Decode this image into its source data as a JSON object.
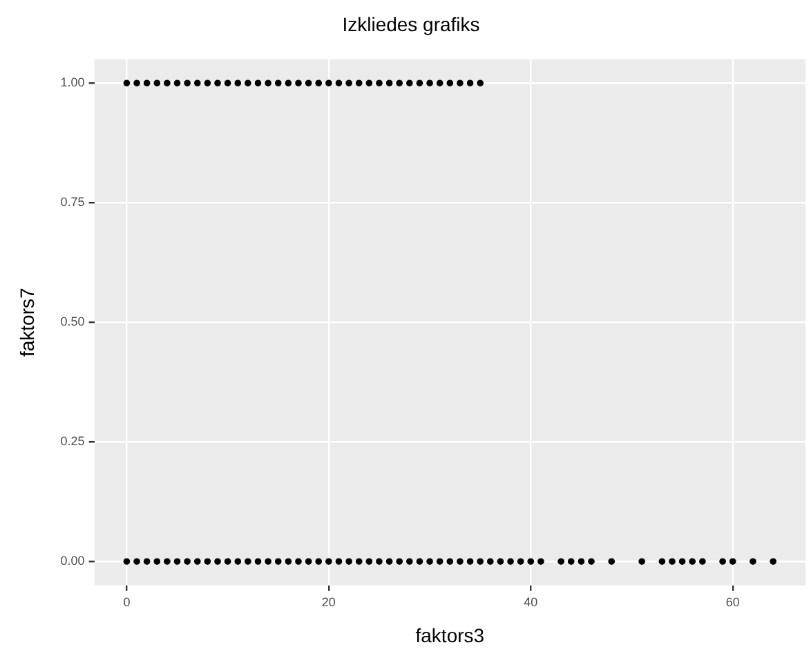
{
  "chart_data": {
    "type": "scatter",
    "title": "Izkliedes grafiks",
    "xlabel": "faktors3",
    "ylabel": "faktors7",
    "series": [
      {
        "color": "#000000",
        "x": [
          0,
          1,
          2,
          3,
          4,
          5,
          6,
          7,
          8,
          9,
          10,
          11,
          12,
          13,
          14,
          15,
          16,
          17,
          18,
          19,
          20,
          21,
          22,
          23,
          24,
          25,
          26,
          27,
          28,
          29,
          30,
          31,
          32,
          33,
          34,
          35
        ],
        "values": [
          1,
          1,
          1,
          1,
          1,
          1,
          1,
          1,
          1,
          1,
          1,
          1,
          1,
          1,
          1,
          1,
          1,
          1,
          1,
          1,
          1,
          1,
          1,
          1,
          1,
          1,
          1,
          1,
          1,
          1,
          1,
          1,
          1,
          1,
          1,
          1
        ]
      },
      {
        "color": "#000000",
        "x": [
          0,
          1,
          2,
          3,
          4,
          5,
          6,
          7,
          8,
          9,
          10,
          11,
          12,
          13,
          14,
          15,
          16,
          17,
          18,
          19,
          20,
          21,
          22,
          23,
          24,
          25,
          26,
          27,
          28,
          29,
          30,
          31,
          32,
          33,
          34,
          35,
          36,
          37,
          38,
          39,
          40,
          41,
          43,
          44,
          45,
          46,
          48,
          51,
          53,
          54,
          55,
          56,
          57,
          59,
          60,
          62,
          64
        ],
        "values": [
          0,
          0,
          0,
          0,
          0,
          0,
          0,
          0,
          0,
          0,
          0,
          0,
          0,
          0,
          0,
          0,
          0,
          0,
          0,
          0,
          0,
          0,
          0,
          0,
          0,
          0,
          0,
          0,
          0,
          0,
          0,
          0,
          0,
          0,
          0,
          0,
          0,
          0,
          0,
          0,
          0,
          0,
          0,
          0,
          0,
          0,
          0,
          0,
          0,
          0,
          0,
          0,
          0,
          0,
          0,
          0,
          0
        ]
      }
    ],
    "xlim": [
      -3.2,
      67.2
    ],
    "xticks": [
      0,
      20,
      40,
      60
    ],
    "ylim": [
      -0.05,
      1.05
    ],
    "yticks": [
      {
        "value": 0,
        "label": "0.00"
      },
      {
        "value": 0.25,
        "label": "0.25"
      },
      {
        "value": 0.5,
        "label": "0.50"
      },
      {
        "value": 0.75,
        "label": "0.75"
      },
      {
        "value": 1,
        "label": "1.00"
      }
    ],
    "grid": true,
    "legend": false,
    "marker": "circle"
  }
}
